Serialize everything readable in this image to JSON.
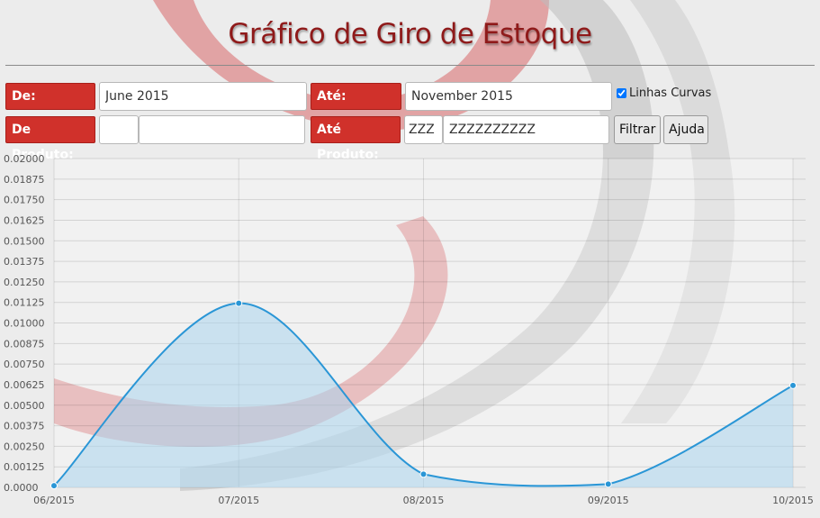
{
  "header": {
    "title": "Gráfico de Giro de Estoque"
  },
  "filters": {
    "de_label": "De:",
    "de_value": "June 2015",
    "ate_label": "Até:",
    "ate_value": "November 2015",
    "curvas_label": "Linhas Curvas",
    "curvas_checked": true,
    "de_produto_label": "De Produto:",
    "de_produto_code": "",
    "de_produto_name": "",
    "ate_produto_label": "Até Produto:",
    "ate_produto_code": "ZZZ",
    "ate_produto_name": "ZZZZZZZZZZ",
    "filtrar_label": "Filtrar",
    "ajuda_label": "Ajuda"
  },
  "colors": {
    "accent_red": "#d0312b",
    "title_red": "#8f1a1a",
    "line_blue": "#2a96d6",
    "fill_blue": "#a9d3ec"
  },
  "chart_data": {
    "type": "area",
    "x": [
      "06/2015",
      "07/2015",
      "08/2015",
      "09/2015",
      "10/2015"
    ],
    "series": [
      {
        "values": [
          0.0001,
          0.0112,
          0.0008,
          0.0002,
          0.0062
        ]
      }
    ],
    "ylim": [
      0,
      0.02
    ],
    "yticks": [
      "0.0000",
      "0.00125",
      "0.00250",
      "0.00375",
      "0.00500",
      "0.00625",
      "0.00750",
      "0.00875",
      "0.01000",
      "0.01125",
      "0.01250",
      "0.01375",
      "0.01500",
      "0.01625",
      "0.01750",
      "0.01875",
      "0.02000"
    ],
    "grid": true,
    "curved": true,
    "legend": "none"
  }
}
